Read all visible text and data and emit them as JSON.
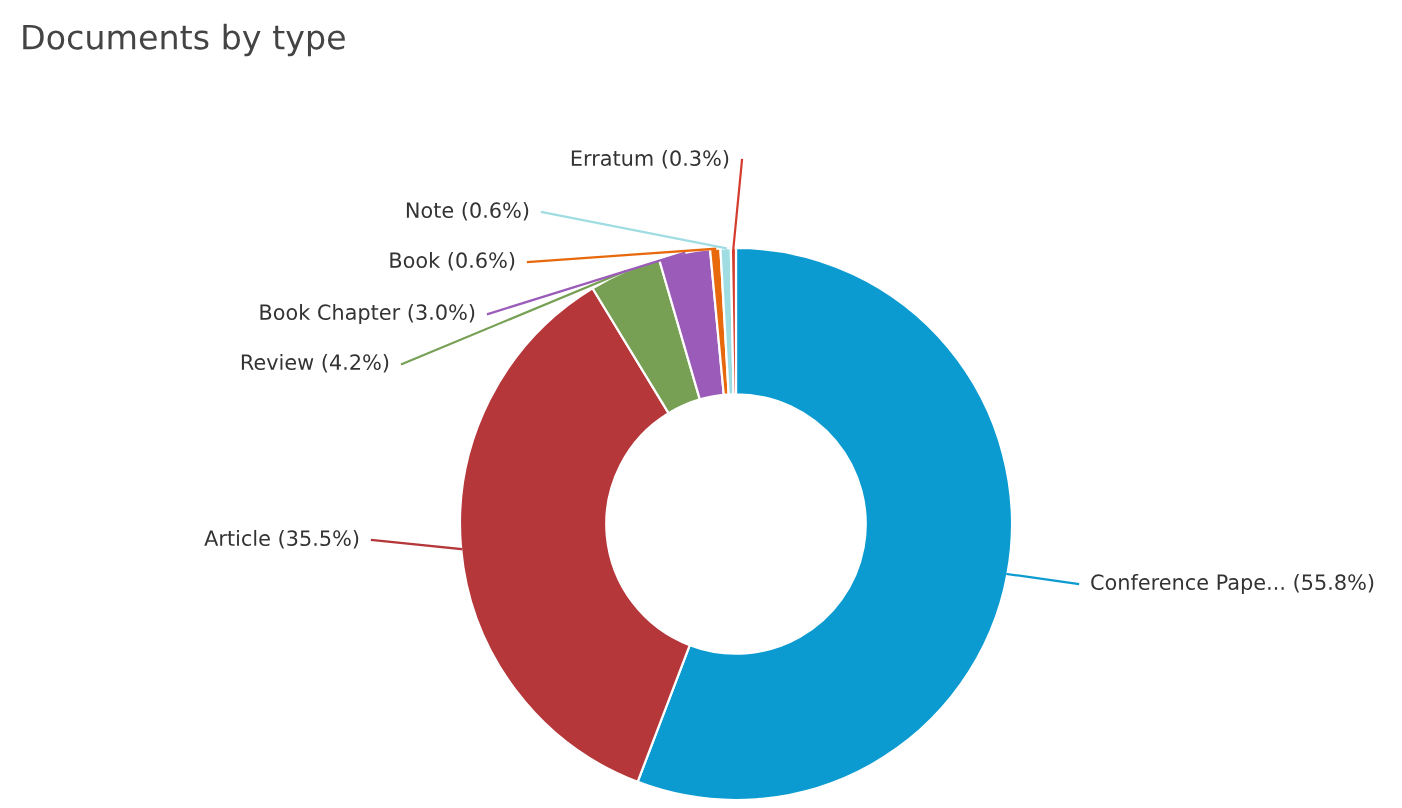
{
  "chart_data": {
    "type": "donut",
    "title": "Documents by type",
    "categories": [
      "Conference Pape...",
      "Article",
      "Review",
      "Book Chapter",
      "Book",
      "Note",
      "Erratum"
    ],
    "values": [
      55.8,
      35.5,
      4.2,
      3.0,
      0.6,
      0.6,
      0.3
    ],
    "colors": [
      "#0b9bd0",
      "#b5373a",
      "#77a055",
      "#9b5bb8",
      "#e8680c",
      "#9fdde2",
      "#d43c2e"
    ],
    "value_labels": [
      "(55.8%)",
      "(35.5%)",
      "(4.2%)",
      "(3.0%)",
      "(0.6%)",
      "(0.6%)",
      "(0.3%)"
    ],
    "legend": false
  }
}
